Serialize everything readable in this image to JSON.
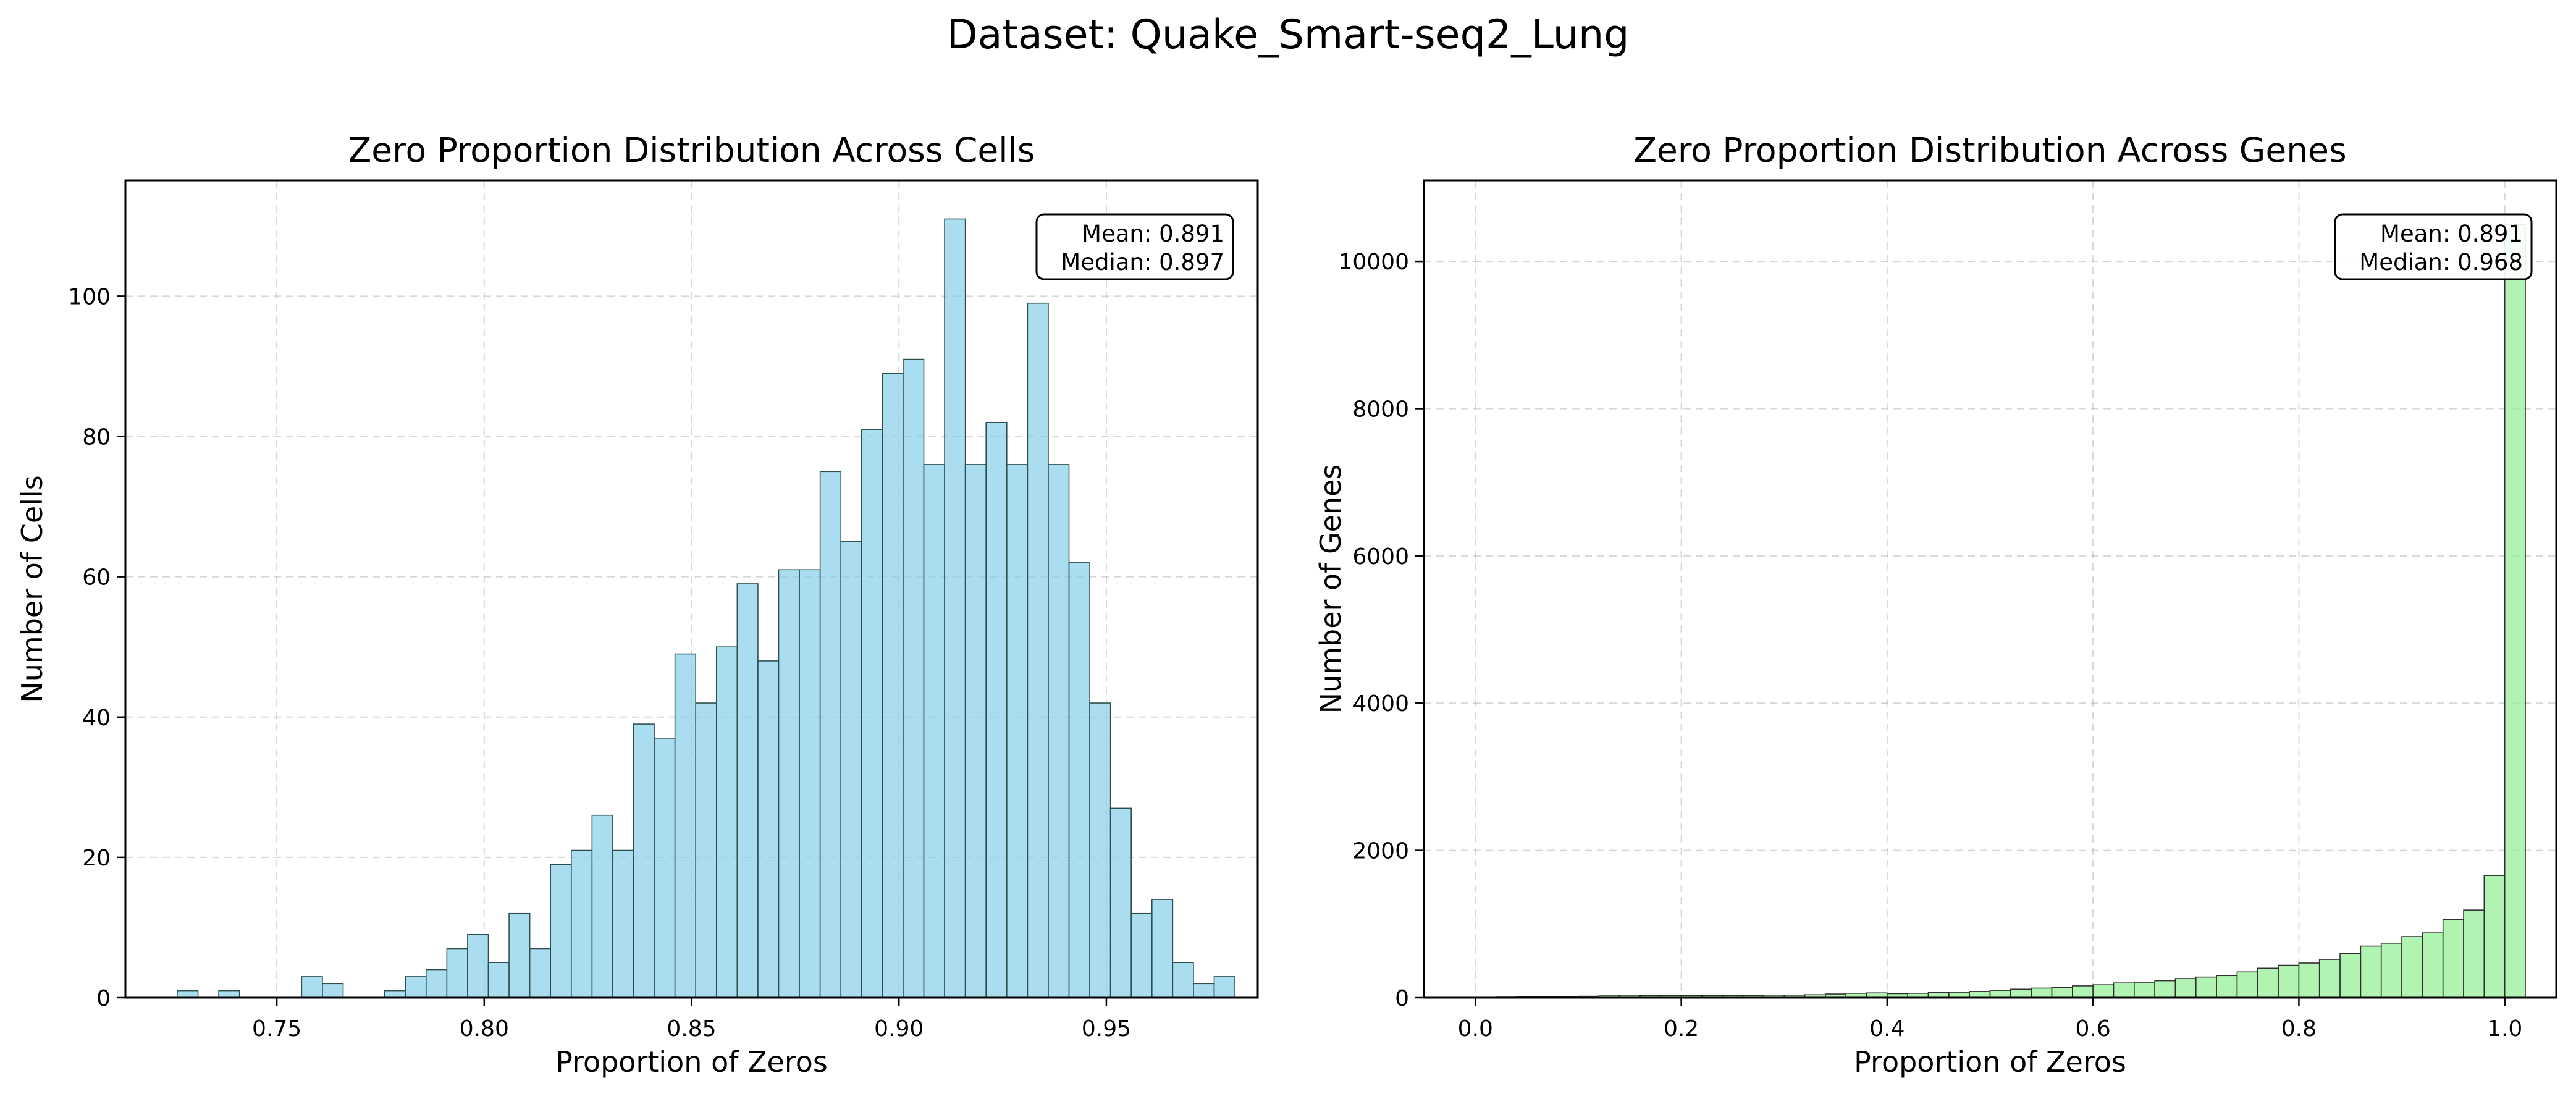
{
  "figure": {
    "suptitle": "Dataset: Quake_Smart-seq2_Lung"
  },
  "chart_data": [
    {
      "type": "bar",
      "title": "Zero Proportion Distribution Across Cells",
      "xlabel": "Proportion of Zeros",
      "ylabel": "Number of Cells",
      "xlim": [
        0.7135,
        0.9865
      ],
      "ylim": [
        0,
        116.5
      ],
      "xticks": [
        0.75,
        0.8,
        0.85,
        0.9,
        0.95
      ],
      "xtick_labels": [
        "0.75",
        "0.80",
        "0.85",
        "0.90",
        "0.95"
      ],
      "yticks": [
        0,
        20,
        40,
        60,
        80,
        100
      ],
      "ytick_labels": [
        "0",
        "20",
        "40",
        "60",
        "80",
        "100"
      ],
      "bin_start": 0.726,
      "bin_width": 0.005,
      "values": [
        1,
        0,
        1,
        0,
        0,
        0,
        3,
        2,
        0,
        0,
        1,
        3,
        4,
        7,
        9,
        5,
        12,
        7,
        19,
        21,
        26,
        21,
        39,
        37,
        49,
        42,
        50,
        59,
        48,
        61,
        61,
        75,
        65,
        81,
        89,
        91,
        76,
        111,
        76,
        82,
        76,
        99,
        76,
        62,
        42,
        27,
        12,
        14,
        5,
        2,
        3
      ],
      "bar_color": "#87CEEB",
      "stats": {
        "mean": "Mean: 0.891",
        "median": "Median: 0.897"
      },
      "grid": true
    },
    {
      "type": "bar",
      "title": "Zero Proportion Distribution Across Genes",
      "xlabel": "Proportion of Zeros",
      "ylabel": "Number of Genes",
      "xlim": [
        -0.05,
        1.05
      ],
      "ylim": [
        0,
        11100
      ],
      "xticks": [
        0.0,
        0.2,
        0.4,
        0.6,
        0.8,
        1.0
      ],
      "xtick_labels": [
        "0.0",
        "0.2",
        "0.4",
        "0.6",
        "0.8",
        "1.0"
      ],
      "yticks": [
        0,
        2000,
        4000,
        6000,
        8000,
        10000
      ],
      "ytick_labels": [
        "0",
        "2000",
        "4000",
        "6000",
        "8000",
        "10000"
      ],
      "bin_start": 0.0,
      "bin_width": 0.02,
      "values": [
        5,
        8,
        10,
        12,
        15,
        20,
        25,
        25,
        28,
        28,
        30,
        30,
        32,
        32,
        35,
        35,
        40,
        50,
        60,
        65,
        55,
        60,
        70,
        75,
        85,
        100,
        115,
        130,
        140,
        160,
        175,
        200,
        210,
        230,
        260,
        280,
        300,
        350,
        400,
        440,
        470,
        520,
        600,
        700,
        740,
        830,
        880,
        1060,
        1190,
        1660,
        10500
      ],
      "bar_color": "#90EE90",
      "stats": {
        "mean": "Mean: 0.891",
        "median": "Median: 0.968"
      },
      "grid": true
    }
  ]
}
